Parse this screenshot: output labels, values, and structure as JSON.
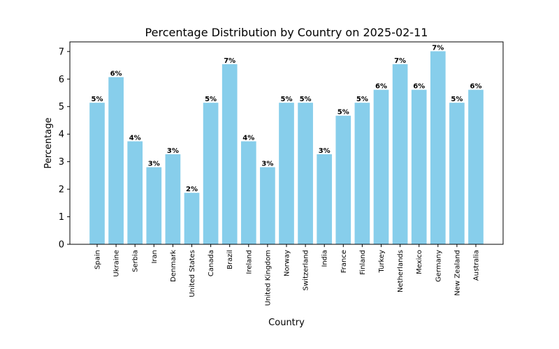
{
  "chart_data": {
    "type": "bar",
    "title": "Percentage Distribution by Country on 2025-02-11",
    "xlabel": "Country",
    "ylabel": "Percentage",
    "ylim": [
      0,
      7.35
    ],
    "yticks": [
      "0",
      "1",
      "2",
      "3",
      "4",
      "5",
      "6",
      "7"
    ],
    "grid": false,
    "bar_color": "#87ceeb",
    "categories": [
      "Spain",
      "Ukraine",
      "Serbia",
      "Iran",
      "Denmark",
      "United States",
      "Canada",
      "Brazil",
      "Ireland",
      "United Kingdom",
      "Norway",
      "Switzerland",
      "India",
      "France",
      "Finland",
      "Turkey",
      "Netherlands",
      "Mexico",
      "Germany",
      "New Zealand",
      "Australia"
    ],
    "values": [
      5.14,
      6.07,
      3.74,
      2.8,
      3.27,
      1.87,
      5.14,
      6.54,
      3.74,
      2.8,
      5.14,
      5.14,
      3.27,
      4.67,
      5.14,
      5.61,
      6.54,
      5.61,
      7.01,
      5.14,
      5.61
    ],
    "data_labels": [
      "5%",
      "6%",
      "4%",
      "3%",
      "3%",
      "2%",
      "5%",
      "7%",
      "4%",
      "3%",
      "5%",
      "5%",
      "3%",
      "5%",
      "5%",
      "6%",
      "7%",
      "6%",
      "7%",
      "5%",
      "6%"
    ]
  }
}
